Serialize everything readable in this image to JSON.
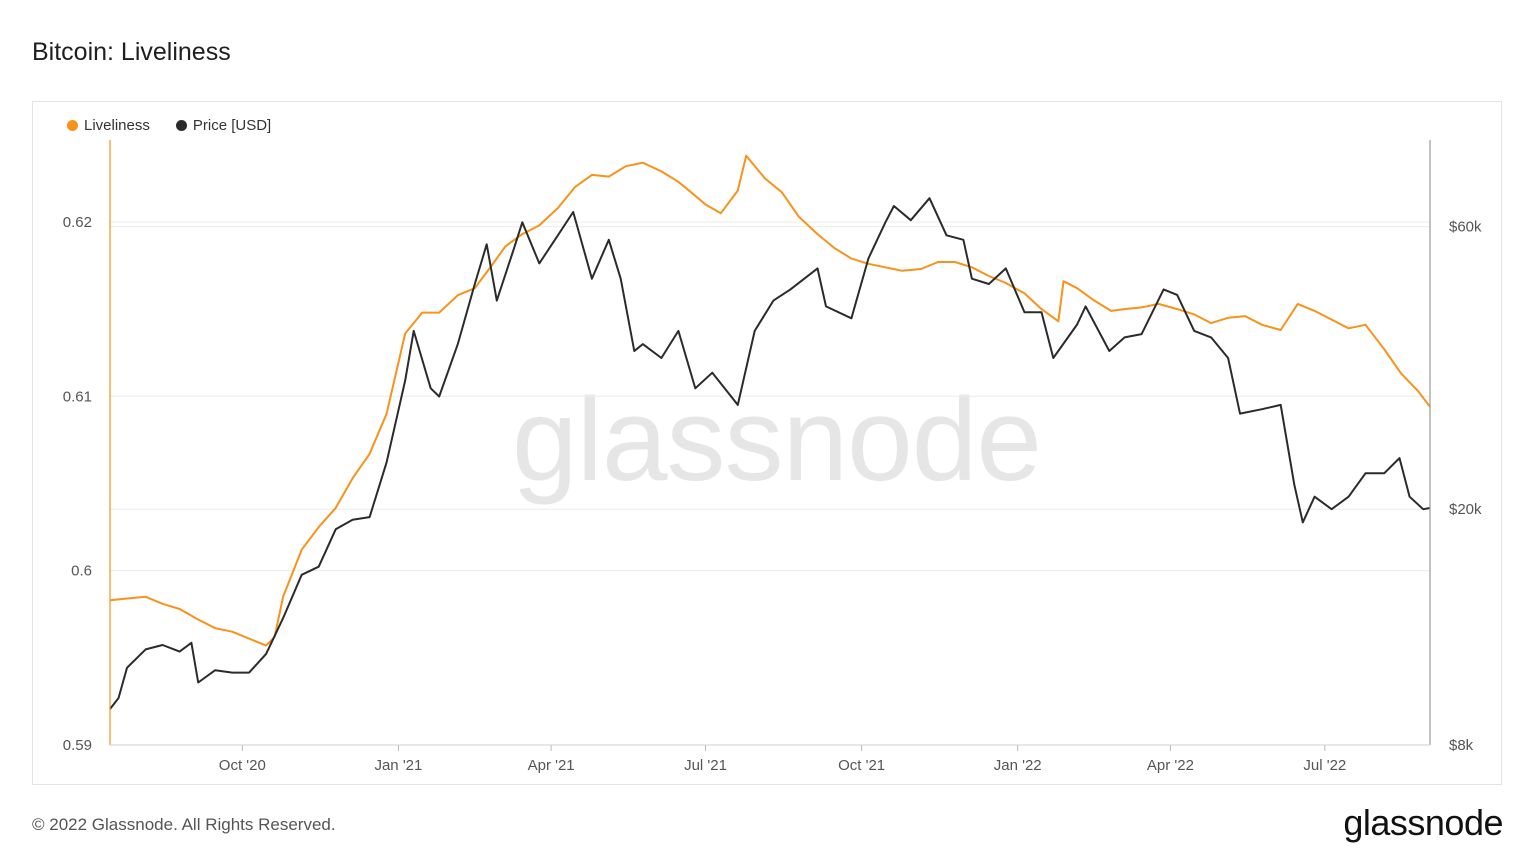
{
  "title": "Bitcoin: Liveliness",
  "footer": {
    "copyright": "© 2022 Glassnode. All Rights Reserved.",
    "logo": "glassnode"
  },
  "watermark": "glassnode",
  "colors": {
    "liveliness": "#f7931a",
    "price": "#2b2b2b",
    "grid": "#ececec"
  },
  "chart_data": {
    "type": "line",
    "title": "Bitcoin: Liveliness",
    "legend": [
      {
        "name": "Liveliness",
        "color": "#f7931a"
      },
      {
        "name": "Price [USD]",
        "color": "#2b2b2b"
      }
    ],
    "legend_placement": "top-left",
    "x_range": [
      "2020-07-15",
      "2022-09-01"
    ],
    "x_ticks": [
      {
        "label": "Oct '20",
        "date": "2020-10-01"
      },
      {
        "label": "Jan '21",
        "date": "2021-01-01"
      },
      {
        "label": "Apr '21",
        "date": "2021-04-01"
      },
      {
        "label": "Jul '21",
        "date": "2021-07-01"
      },
      {
        "label": "Oct '21",
        "date": "2021-10-01"
      },
      {
        "label": "Jan '22",
        "date": "2022-01-01"
      },
      {
        "label": "Apr '22",
        "date": "2022-04-01"
      },
      {
        "label": "Jul '22",
        "date": "2022-07-01"
      }
    ],
    "y_left": {
      "min": 0.59,
      "max": 0.6247,
      "ticks": [
        {
          "label": "0.59",
          "value": 0.59
        },
        {
          "label": "0.6",
          "value": 0.6
        },
        {
          "label": "0.61",
          "value": 0.61
        },
        {
          "label": "0.62",
          "value": 0.62
        }
      ]
    },
    "y_right": {
      "scale": "log",
      "min": 8000,
      "max": 84000,
      "ticks": [
        {
          "label": "$8k",
          "value": 8000
        },
        {
          "label": "$20k",
          "value": 20000
        },
        {
          "label": "$60k",
          "value": 60000
        }
      ]
    },
    "grid": true,
    "series": [
      {
        "name": "Liveliness",
        "axis": "left",
        "points": [
          [
            "2020-07-15",
            0.5983
          ],
          [
            "2020-07-25",
            0.5984
          ],
          [
            "2020-08-05",
            0.5985
          ],
          [
            "2020-08-15",
            0.5981
          ],
          [
            "2020-08-25",
            0.5978
          ],
          [
            "2020-09-05",
            0.5972
          ],
          [
            "2020-09-15",
            0.5967
          ],
          [
            "2020-09-25",
            0.5965
          ],
          [
            "2020-10-05",
            0.5961
          ],
          [
            "2020-10-15",
            0.5957
          ],
          [
            "2020-10-20",
            0.5962
          ],
          [
            "2020-10-25",
            0.5985
          ],
          [
            "2020-11-05",
            0.6012
          ],
          [
            "2020-11-15",
            0.6025
          ],
          [
            "2020-11-25",
            0.6036
          ],
          [
            "2020-12-05",
            0.6053
          ],
          [
            "2020-12-15",
            0.6067
          ],
          [
            "2020-12-25",
            0.609
          ],
          [
            "2021-01-05",
            0.6136
          ],
          [
            "2021-01-15",
            0.6148
          ],
          [
            "2021-01-25",
            0.6148
          ],
          [
            "2021-02-05",
            0.6158
          ],
          [
            "2021-02-15",
            0.6162
          ],
          [
            "2021-02-25",
            0.6175
          ],
          [
            "2021-03-05",
            0.6186
          ],
          [
            "2021-03-15",
            0.6193
          ],
          [
            "2021-03-25",
            0.6198
          ],
          [
            "2021-04-05",
            0.6208
          ],
          [
            "2021-04-15",
            0.622
          ],
          [
            "2021-04-25",
            0.6227
          ],
          [
            "2021-05-05",
            0.6226
          ],
          [
            "2021-05-15",
            0.6232
          ],
          [
            "2021-05-25",
            0.6234
          ],
          [
            "2021-06-05",
            0.6229
          ],
          [
            "2021-06-15",
            0.6223
          ],
          [
            "2021-06-25",
            0.6215
          ],
          [
            "2021-07-01",
            0.621
          ],
          [
            "2021-07-10",
            0.6205
          ],
          [
            "2021-07-20",
            0.6218
          ],
          [
            "2021-07-25",
            0.6238
          ],
          [
            "2021-08-05",
            0.6225
          ],
          [
            "2021-08-15",
            0.6217
          ],
          [
            "2021-08-25",
            0.6203
          ],
          [
            "2021-09-05",
            0.6193
          ],
          [
            "2021-09-15",
            0.6185
          ],
          [
            "2021-09-25",
            0.6179
          ],
          [
            "2021-10-05",
            0.6176
          ],
          [
            "2021-10-15",
            0.6174
          ],
          [
            "2021-10-25",
            0.6172
          ],
          [
            "2021-11-05",
            0.6173
          ],
          [
            "2021-11-15",
            0.6177
          ],
          [
            "2021-11-25",
            0.6177
          ],
          [
            "2021-12-05",
            0.6174
          ],
          [
            "2021-12-15",
            0.6169
          ],
          [
            "2021-12-25",
            0.6165
          ],
          [
            "2022-01-05",
            0.6159
          ],
          [
            "2022-01-15",
            0.615
          ],
          [
            "2022-01-25",
            0.6143
          ],
          [
            "2022-01-28",
            0.6166
          ],
          [
            "2022-02-05",
            0.6162
          ],
          [
            "2022-02-15",
            0.6155
          ],
          [
            "2022-02-25",
            0.6149
          ],
          [
            "2022-03-05",
            0.615
          ],
          [
            "2022-03-15",
            0.6151
          ],
          [
            "2022-03-25",
            0.6153
          ],
          [
            "2022-04-05",
            0.615
          ],
          [
            "2022-04-15",
            0.6147
          ],
          [
            "2022-04-25",
            0.6142
          ],
          [
            "2022-05-05",
            0.6145
          ],
          [
            "2022-05-15",
            0.6146
          ],
          [
            "2022-05-25",
            0.6141
          ],
          [
            "2022-06-05",
            0.6138
          ],
          [
            "2022-06-15",
            0.6153
          ],
          [
            "2022-06-25",
            0.6149
          ],
          [
            "2022-07-05",
            0.6144
          ],
          [
            "2022-07-15",
            0.6139
          ],
          [
            "2022-07-25",
            0.6141
          ],
          [
            "2022-08-05",
            0.6127
          ],
          [
            "2022-08-15",
            0.6113
          ],
          [
            "2022-08-25",
            0.6103
          ],
          [
            "2022-09-01",
            0.6094
          ]
        ]
      },
      {
        "name": "Price [USD]",
        "axis": "right",
        "points": [
          [
            "2020-07-15",
            9200
          ],
          [
            "2020-07-20",
            9600
          ],
          [
            "2020-07-25",
            10800
          ],
          [
            "2020-08-05",
            11600
          ],
          [
            "2020-08-15",
            11800
          ],
          [
            "2020-08-25",
            11500
          ],
          [
            "2020-09-01",
            11900
          ],
          [
            "2020-09-05",
            10200
          ],
          [
            "2020-09-15",
            10700
          ],
          [
            "2020-09-25",
            10600
          ],
          [
            "2020-10-05",
            10600
          ],
          [
            "2020-10-15",
            11400
          ],
          [
            "2020-10-25",
            13100
          ],
          [
            "2020-11-05",
            15500
          ],
          [
            "2020-11-15",
            16000
          ],
          [
            "2020-11-25",
            18500
          ],
          [
            "2020-12-05",
            19200
          ],
          [
            "2020-12-15",
            19400
          ],
          [
            "2020-12-25",
            24000
          ],
          [
            "2021-01-05",
            33000
          ],
          [
            "2021-01-10",
            40000
          ],
          [
            "2021-01-20",
            32000
          ],
          [
            "2021-01-25",
            31000
          ],
          [
            "2021-02-05",
            38000
          ],
          [
            "2021-02-15",
            48000
          ],
          [
            "2021-02-22",
            56000
          ],
          [
            "2021-02-28",
            45000
          ],
          [
            "2021-03-10",
            55000
          ],
          [
            "2021-03-15",
            61000
          ],
          [
            "2021-03-25",
            52000
          ],
          [
            "2021-04-05",
            58000
          ],
          [
            "2021-04-14",
            63500
          ],
          [
            "2021-04-25",
            49000
          ],
          [
            "2021-05-05",
            57000
          ],
          [
            "2021-05-12",
            49000
          ],
          [
            "2021-05-20",
            37000
          ],
          [
            "2021-05-25",
            38000
          ],
          [
            "2021-06-05",
            36000
          ],
          [
            "2021-06-15",
            40000
          ],
          [
            "2021-06-25",
            32000
          ],
          [
            "2021-07-05",
            34000
          ],
          [
            "2021-07-20",
            30000
          ],
          [
            "2021-07-30",
            40000
          ],
          [
            "2021-08-10",
            45000
          ],
          [
            "2021-08-20",
            47000
          ],
          [
            "2021-09-05",
            51000
          ],
          [
            "2021-09-10",
            44000
          ],
          [
            "2021-09-25",
            42000
          ],
          [
            "2021-10-05",
            53000
          ],
          [
            "2021-10-15",
            61000
          ],
          [
            "2021-10-20",
            65000
          ],
          [
            "2021-10-30",
            61500
          ],
          [
            "2021-11-10",
            67000
          ],
          [
            "2021-11-20",
            58000
          ],
          [
            "2021-11-30",
            57000
          ],
          [
            "2021-12-05",
            49000
          ],
          [
            "2021-12-15",
            48000
          ],
          [
            "2021-12-25",
            51000
          ],
          [
            "2022-01-05",
            43000
          ],
          [
            "2022-01-15",
            43000
          ],
          [
            "2022-01-22",
            36000
          ],
          [
            "2022-02-05",
            41000
          ],
          [
            "2022-02-10",
            44000
          ],
          [
            "2022-02-24",
            37000
          ],
          [
            "2022-03-05",
            39000
          ],
          [
            "2022-03-15",
            39500
          ],
          [
            "2022-03-28",
            47000
          ],
          [
            "2022-04-05",
            46000
          ],
          [
            "2022-04-15",
            40000
          ],
          [
            "2022-04-25",
            39000
          ],
          [
            "2022-05-05",
            36000
          ],
          [
            "2022-05-12",
            29000
          ],
          [
            "2022-05-25",
            29500
          ],
          [
            "2022-06-05",
            30000
          ],
          [
            "2022-06-13",
            22000
          ],
          [
            "2022-06-18",
            19000
          ],
          [
            "2022-06-25",
            21000
          ],
          [
            "2022-07-05",
            20000
          ],
          [
            "2022-07-15",
            21000
          ],
          [
            "2022-07-25",
            23000
          ],
          [
            "2022-08-05",
            23000
          ],
          [
            "2022-08-14",
            24400
          ],
          [
            "2022-08-20",
            21000
          ],
          [
            "2022-08-28",
            20000
          ],
          [
            "2022-09-01",
            20100
          ]
        ]
      }
    ]
  }
}
